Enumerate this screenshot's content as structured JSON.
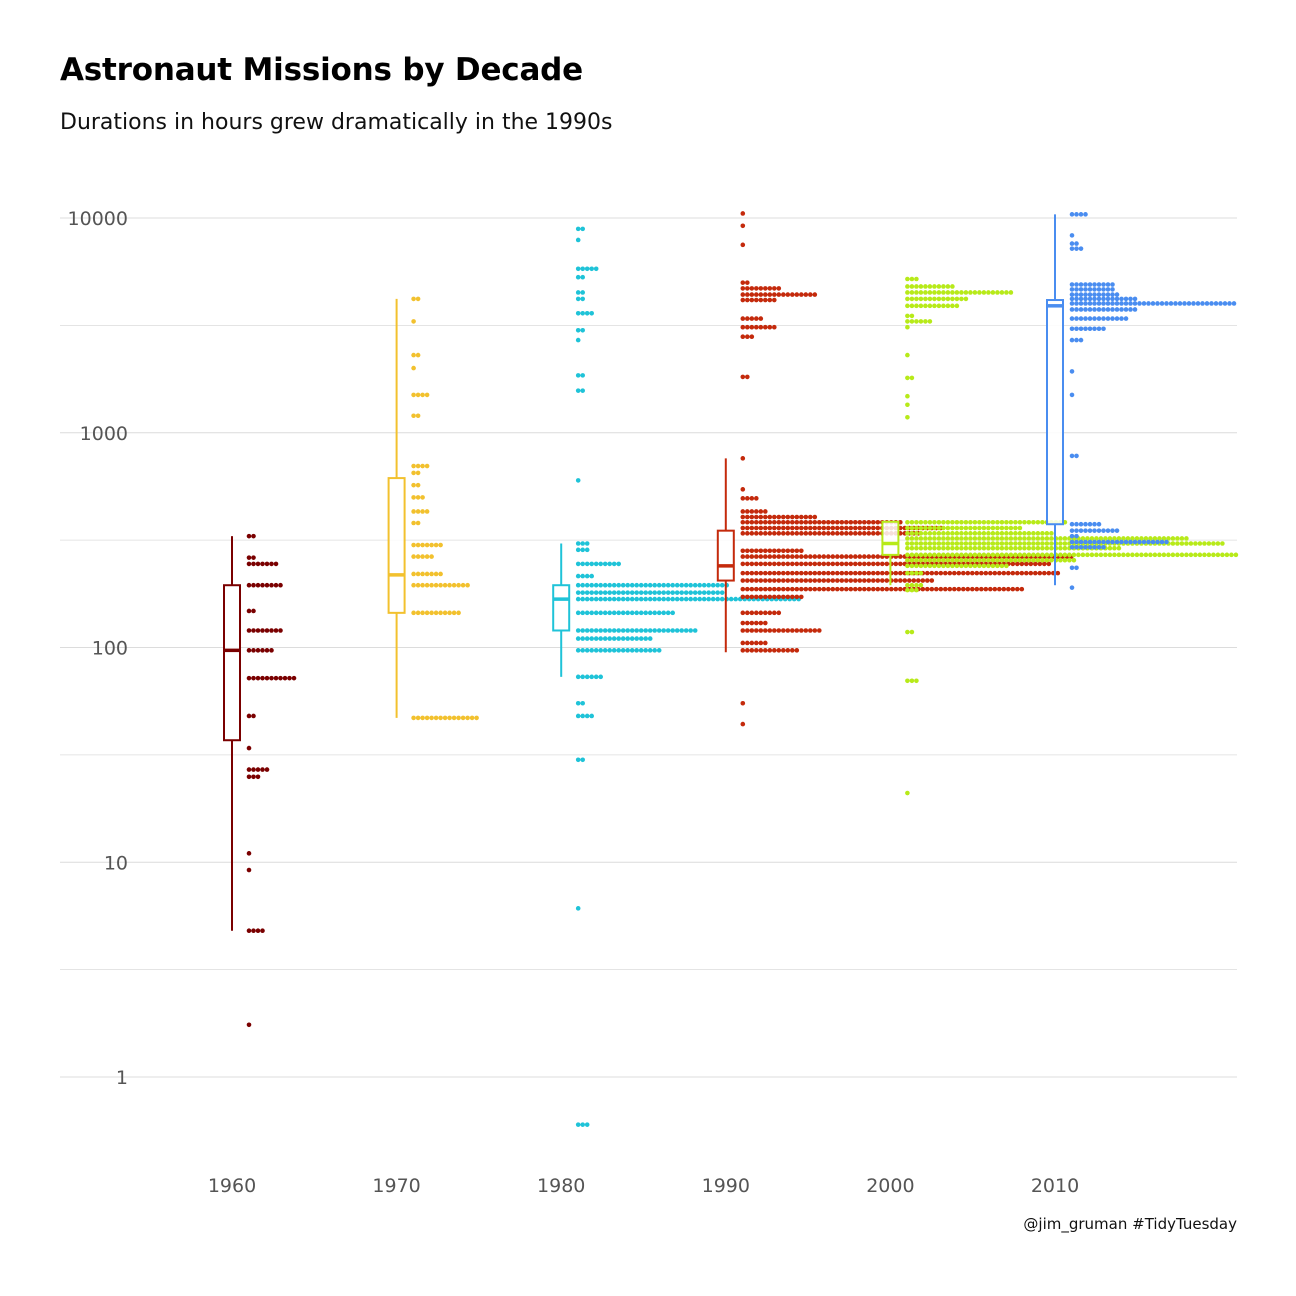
{
  "title": "Astronaut Missions by Decade",
  "subtitle": "Durations in hours grew dramatically in the 1990s",
  "caption": "@jim_gruman #TidyTuesday",
  "chart_data": {
    "type": "box + dotplot",
    "x_axis": {
      "ticks": [
        1960,
        1970,
        1980,
        1990,
        2000,
        2010
      ],
      "tick_labels": [
        "1960",
        "1970",
        "1980",
        "1990",
        "2000",
        "2010"
      ],
      "range": [
        1954.5,
        2021
      ]
    },
    "y_axis": {
      "scale": "log10",
      "ticks": [
        1,
        10,
        100,
        1000,
        10000
      ],
      "tick_labels": [
        "1",
        "10",
        "100",
        "1000",
        "10000"
      ],
      "range": [
        0.5,
        14000
      ]
    },
    "grid": true,
    "legend": "none",
    "series": [
      {
        "decade": 1960,
        "color": "#7a0000",
        "box": {
          "lower_whisker": 4.8,
          "q1": 37,
          "median": 97,
          "q3": 195,
          "upper_whisker": 330
        },
        "dots": [
          [
            330,
            2
          ],
          [
            262,
            2
          ],
          [
            245,
            7
          ],
          [
            195,
            8
          ],
          [
            148,
            2
          ],
          [
            120,
            8
          ],
          [
            97,
            6
          ],
          [
            72,
            11
          ],
          [
            48,
            2
          ],
          [
            34,
            1
          ],
          [
            27,
            5
          ],
          [
            25,
            3
          ],
          [
            11,
            1
          ],
          [
            9.2,
            1
          ],
          [
            4.8,
            4
          ],
          [
            1.75,
            1
          ]
        ]
      },
      {
        "decade": 1970,
        "color": "#f2c12e",
        "box": {
          "lower_whisker": 47,
          "q1": 145,
          "median": 218,
          "q3": 615,
          "upper_whisker": 4200
        },
        "dots": [
          [
            4200,
            2
          ],
          [
            3300,
            1
          ],
          [
            2300,
            2
          ],
          [
            2000,
            1
          ],
          [
            1500,
            4
          ],
          [
            1200,
            2
          ],
          [
            700,
            4
          ],
          [
            650,
            2
          ],
          [
            570,
            2
          ],
          [
            500,
            3
          ],
          [
            430,
            4
          ],
          [
            380,
            2
          ],
          [
            300,
            7
          ],
          [
            265,
            5
          ],
          [
            220,
            7
          ],
          [
            195,
            13
          ],
          [
            145,
            11
          ],
          [
            47,
            15
          ]
        ]
      },
      {
        "decade": 1980,
        "color": "#1fc3d8",
        "box": {
          "lower_whisker": 73,
          "q1": 120,
          "median": 168,
          "q3": 195,
          "upper_whisker": 305
        },
        "dots": [
          [
            8900,
            2
          ],
          [
            7900,
            1
          ],
          [
            5800,
            5
          ],
          [
            5300,
            2
          ],
          [
            4500,
            2
          ],
          [
            4200,
            2
          ],
          [
            3600,
            4
          ],
          [
            3000,
            2
          ],
          [
            2700,
            1
          ],
          [
            1850,
            2
          ],
          [
            1570,
            2
          ],
          [
            600,
            1
          ],
          [
            305,
            3
          ],
          [
            285,
            3
          ],
          [
            245,
            10
          ],
          [
            215,
            4
          ],
          [
            195,
            34
          ],
          [
            180,
            33
          ],
          [
            168,
            50
          ],
          [
            145,
            22
          ],
          [
            120,
            27
          ],
          [
            110,
            17
          ],
          [
            97,
            19
          ],
          [
            73,
            6
          ],
          [
            55,
            2
          ],
          [
            48,
            4
          ],
          [
            30,
            2
          ],
          [
            6.1,
            1
          ],
          [
            0.6,
            3
          ]
        ]
      },
      {
        "decade": 1990,
        "color": "#c42a0c",
        "box": {
          "lower_whisker": 95,
          "q1": 205,
          "median": 240,
          "q3": 350,
          "upper_whisker": 760
        },
        "dots": [
          [
            10500,
            1
          ],
          [
            9200,
            1
          ],
          [
            7500,
            1
          ],
          [
            5000,
            2
          ],
          [
            4700,
            9
          ],
          [
            4400,
            17
          ],
          [
            4150,
            8
          ],
          [
            3400,
            5
          ],
          [
            3100,
            8
          ],
          [
            2800,
            3
          ],
          [
            1820,
            2
          ],
          [
            760,
            1
          ],
          [
            545,
            1
          ],
          [
            495,
            4
          ],
          [
            430,
            6
          ],
          [
            405,
            17
          ],
          [
            383,
            36
          ],
          [
            360,
            45
          ],
          [
            340,
            40
          ],
          [
            282,
            14
          ],
          [
            265,
            74
          ],
          [
            245,
            69
          ],
          [
            222,
            71
          ],
          [
            205,
            43
          ],
          [
            187,
            63
          ],
          [
            172,
            14
          ],
          [
            145,
            9
          ],
          [
            130,
            6
          ],
          [
            120,
            18
          ],
          [
            105,
            6
          ],
          [
            97,
            13
          ],
          [
            55,
            1
          ],
          [
            44,
            1
          ]
        ]
      },
      {
        "decade": 2000,
        "color": "#b7ea19",
        "box": {
          "lower_whisker": 195,
          "q1": 270,
          "median": 305,
          "q3": 385,
          "upper_whisker": 385
        },
        "dots": [
          [
            5200,
            3
          ],
          [
            4800,
            11
          ],
          [
            4500,
            24
          ],
          [
            4200,
            14
          ],
          [
            3900,
            12
          ],
          [
            3500,
            2
          ],
          [
            3300,
            6
          ],
          [
            3100,
            1
          ],
          [
            2300,
            1
          ],
          [
            1800,
            2
          ],
          [
            1480,
            1
          ],
          [
            1350,
            1
          ],
          [
            1180,
            1
          ],
          [
            383,
            36
          ],
          [
            360,
            26
          ],
          [
            340,
            33
          ],
          [
            322,
            63
          ],
          [
            305,
            71
          ],
          [
            290,
            48
          ],
          [
            270,
            83
          ],
          [
            255,
            38
          ],
          [
            240,
            23
          ],
          [
            222,
            4
          ],
          [
            195,
            4
          ],
          [
            185,
            3
          ],
          [
            118,
            2
          ],
          [
            70,
            3
          ],
          [
            21,
            1
          ]
        ]
      },
      {
        "decade": 2010,
        "color": "#4a8df0",
        "box": {
          "lower_whisker": 195,
          "q1": 375,
          "median": 3900,
          "q3": 4150,
          "upper_whisker": 10400
        },
        "dots": [
          [
            10400,
            4
          ],
          [
            8300,
            1
          ],
          [
            7600,
            2
          ],
          [
            7200,
            3
          ],
          [
            4900,
            10
          ],
          [
            4650,
            10
          ],
          [
            4400,
            11
          ],
          [
            4200,
            15
          ],
          [
            4000,
            45
          ],
          [
            3750,
            15
          ],
          [
            3400,
            13
          ],
          [
            3050,
            8
          ],
          [
            2700,
            3
          ],
          [
            1930,
            1
          ],
          [
            1500,
            1
          ],
          [
            780,
            2
          ],
          [
            375,
            7
          ],
          [
            350,
            11
          ],
          [
            330,
            2
          ],
          [
            310,
            22
          ],
          [
            293,
            8
          ],
          [
            235,
            2
          ],
          [
            190,
            1
          ]
        ]
      }
    ]
  }
}
